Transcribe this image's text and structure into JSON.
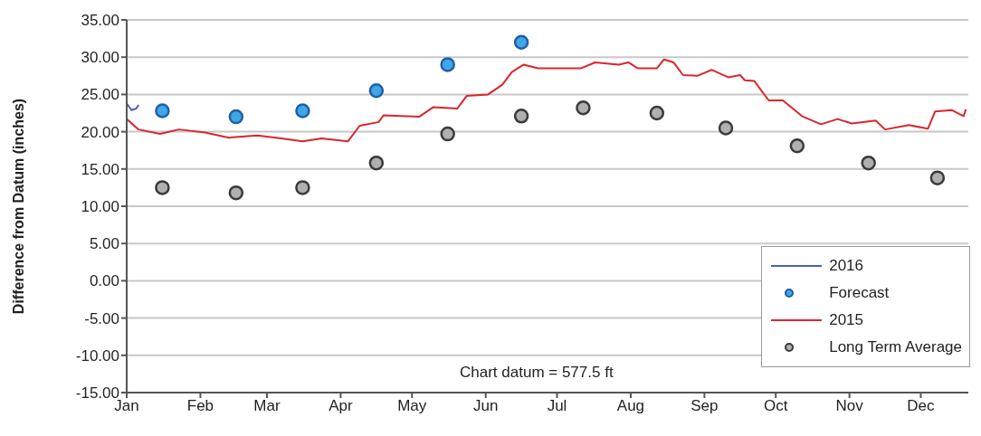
{
  "chart_data": {
    "type": "line",
    "ylabel": "Difference from Datum (inches)",
    "xlim": [
      "--01-01",
      "--12-21"
    ],
    "xticks": [
      {
        "value": "--01-01",
        "label": "Jan"
      },
      {
        "value": "--02-01",
        "label": "Feb"
      },
      {
        "value": "--03-01",
        "label": "Mar"
      },
      {
        "value": "--04-01",
        "label": "Apr"
      },
      {
        "value": "--05-01",
        "label": "May"
      },
      {
        "value": "--06-01",
        "label": "Jun"
      },
      {
        "value": "--07-01",
        "label": "Jul"
      },
      {
        "value": "--08-01",
        "label": "Aug"
      },
      {
        "value": "--09-01",
        "label": "Sep"
      },
      {
        "value": "--10-01",
        "label": "Oct"
      },
      {
        "value": "--11-01",
        "label": "Nov"
      },
      {
        "value": "--12-01",
        "label": "Dec"
      }
    ],
    "ylim": [
      -15,
      35
    ],
    "yticks": [
      {
        "value": -15,
        "label": "-15.00"
      },
      {
        "value": -10,
        "label": "-10.00"
      },
      {
        "value": -5,
        "label": "-5.00"
      },
      {
        "value": 0,
        "label": "0.00"
      },
      {
        "value": 5,
        "label": "5.00"
      },
      {
        "value": 10,
        "label": "10.00"
      },
      {
        "value": 15,
        "label": "15.00"
      },
      {
        "value": 20,
        "label": "20.00"
      },
      {
        "value": 25,
        "label": "25.00"
      },
      {
        "value": 30,
        "label": "30.00"
      },
      {
        "value": 35,
        "label": "35.00"
      }
    ],
    "grid": "y",
    "legend": "bottom right",
    "annotations": [
      "Chart datum = 577.5 ft"
    ],
    "series": [
      {
        "name": "2016",
        "type": "line",
        "color": "#4a5fc1",
        "marker": "none",
        "x": [
          "--01-01",
          "--01-03",
          "--01-05",
          "--01-06"
        ],
        "values": [
          23.8,
          22.9,
          23.1,
          23.6
        ]
      },
      {
        "name": "Forecast",
        "type": "scatter",
        "color": "#3fa7e8",
        "marker": "circle",
        "x": [
          "--01-16",
          "--02-16",
          "--03-16",
          "--04-16",
          "--05-16",
          "--06-16"
        ],
        "values": [
          22.8,
          22,
          22.8,
          25.5,
          29,
          32
        ]
      },
      {
        "name": "2015",
        "type": "line",
        "color": "#d9262c",
        "marker": "none",
        "x": [
          "--01-01",
          "--01-06",
          "--01-15",
          "--01-23",
          "--02-03",
          "--02-13",
          "--02-25",
          "--03-07",
          "--03-16",
          "--03-24",
          "--04-04",
          "--04-09",
          "--04-17",
          "--04-19",
          "--05-04",
          "--05-10",
          "--05-20",
          "--05-24",
          "--06-02",
          "--06-08",
          "--06-12",
          "--06-17",
          "--06-23",
          "--07-11",
          "--07-17",
          "--07-27",
          "--07-31",
          "--08-04",
          "--08-12",
          "--08-15",
          "--08-19",
          "--08-23",
          "--08-29",
          "--09-04",
          "--09-11",
          "--09-16",
          "--09-18",
          "--09-22",
          "--09-28",
          "--10-04",
          "--10-12",
          "--10-20",
          "--10-27",
          "--11-02",
          "--11-12",
          "--11-16",
          "--11-26",
          "--12-04",
          "--12-07",
          "--12-14",
          "--12-19",
          "--12-20"
        ],
        "values": [
          21.7,
          20.3,
          19.7,
          20.3,
          19.9,
          19.2,
          19.5,
          19.1,
          18.7,
          19.1,
          18.7,
          20.8,
          21.3,
          22.2,
          22,
          23.3,
          23.1,
          24.8,
          25,
          26.3,
          28,
          29,
          28.5,
          28.5,
          29.3,
          29,
          29.3,
          28.5,
          28.5,
          29.7,
          29.3,
          27.6,
          27.5,
          28.3,
          27.3,
          27.6,
          26.9,
          26.8,
          24.2,
          24.2,
          22.1,
          21,
          21.7,
          21.1,
          21.5,
          20.3,
          20.9,
          20.4,
          22.7,
          22.9,
          22.1,
          23
        ]
      },
      {
        "name": "Long Term Average",
        "type": "scatter",
        "color": "#b0b0b0",
        "marker": "circle",
        "x": [
          "--01-16",
          "--02-16",
          "--03-16",
          "--04-16",
          "--05-16",
          "--06-16",
          "--07-12",
          "--08-12",
          "--09-10",
          "--10-10",
          "--11-09",
          "--12-08"
        ],
        "values": [
          12.5,
          11.8,
          12.5,
          15.8,
          19.7,
          22.1,
          23.2,
          22.5,
          20.5,
          18.1,
          15.8,
          13.8
        ]
      }
    ]
  }
}
